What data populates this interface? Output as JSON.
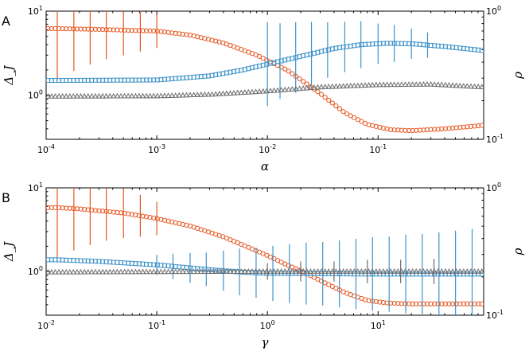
{
  "chart_data": [
    {
      "panel_label": "A",
      "type": "line",
      "title": "",
      "xlabel": "α",
      "ylabel_left": "Δ_J",
      "ylabel_right": "ρ",
      "x_scale": "log",
      "x_range": [
        0.0001,
        0.9
      ],
      "x_ticks": [
        {
          "base": "10",
          "exp": "-4",
          "value": 0.0001
        },
        {
          "base": "10",
          "exp": "-3",
          "value": 0.001
        },
        {
          "base": "10",
          "exp": "-2",
          "value": 0.01
        },
        {
          "base": "10",
          "exp": "-1",
          "value": 0.1
        }
      ],
      "y_left_scale": "log",
      "y_left_range": [
        0.3,
        10
      ],
      "y_left_ticks": [
        {
          "base": "10",
          "exp": "1",
          "value": 10
        },
        {
          "base": "10",
          "exp": "0",
          "value": 1
        }
      ],
      "y_right_scale": "log",
      "y_right_range": [
        0.1,
        1
      ],
      "y_right_ticks": [
        {
          "base": "10",
          "exp": "0",
          "value": 1
        },
        {
          "base": "10",
          "exp": "-1",
          "value": 0.1
        }
      ],
      "grid": false,
      "series": [
        {
          "axis": "left",
          "marker": "circle",
          "color": "#e8561f",
          "points": [
            [
              0.000126,
              6.2
            ],
            [
              0.000178,
              6.15
            ],
            [
              0.00025,
              6.1
            ],
            [
              0.0004,
              6.0
            ],
            [
              0.001,
              5.8
            ],
            [
              0.002,
              5.2
            ],
            [
              0.004,
              4.2
            ],
            [
              0.008,
              3.0
            ],
            [
              0.015,
              2.0
            ],
            [
              0.03,
              1.05
            ],
            [
              0.05,
              0.62
            ],
            [
              0.08,
              0.45
            ],
            [
              0.13,
              0.39
            ],
            [
              0.2,
              0.38
            ],
            [
              0.4,
              0.4
            ],
            [
              0.9,
              0.44
            ]
          ],
          "errors": [
            [
              0.000126,
              0.6
            ],
            [
              0.000178,
              0.5
            ],
            [
              0.00025,
              0.42
            ],
            [
              0.00035,
              0.35
            ],
            [
              0.0005,
              0.3
            ],
            [
              0.00071,
              0.25
            ],
            [
              0.001,
              0.2
            ]
          ]
        },
        {
          "axis": "left",
          "marker": "square",
          "color": "#3f93c9",
          "points": [
            [
              0.0001,
              1.5
            ],
            [
              0.001,
              1.52
            ],
            [
              0.003,
              1.7
            ],
            [
              0.006,
              2.0
            ],
            [
              0.01,
              2.35
            ],
            [
              0.02,
              2.9
            ],
            [
              0.04,
              3.6
            ],
            [
              0.07,
              4.0
            ],
            [
              0.12,
              4.15
            ],
            [
              0.2,
              4.1
            ],
            [
              0.4,
              3.8
            ],
            [
              0.9,
              3.4
            ]
          ],
          "errors": [
            [
              0.01,
              0.5
            ],
            [
              0.013,
              0.45
            ],
            [
              0.018,
              0.42
            ],
            [
              0.025,
              0.38
            ],
            [
              0.035,
              0.33
            ],
            [
              0.05,
              0.3
            ],
            [
              0.07,
              0.28
            ],
            [
              0.1,
              0.24
            ],
            [
              0.14,
              0.22
            ],
            [
              0.2,
              0.18
            ],
            [
              0.28,
              0.15
            ]
          ]
        },
        {
          "axis": "left",
          "marker": "triangle",
          "color": "#6b6b6b",
          "points": [
            [
              0.0001,
              0.97
            ],
            [
              0.001,
              0.98
            ],
            [
              0.003,
              1.02
            ],
            [
              0.01,
              1.12
            ],
            [
              0.03,
              1.25
            ],
            [
              0.1,
              1.33
            ],
            [
              0.3,
              1.35
            ],
            [
              0.9,
              1.25
            ]
          ],
          "errors": []
        }
      ]
    },
    {
      "panel_label": "B",
      "type": "line",
      "title": "",
      "xlabel": "γ",
      "ylabel_left": "Δ_J",
      "ylabel_right": "ρ",
      "x_scale": "log",
      "x_range": [
        0.01,
        90
      ],
      "x_ticks": [
        {
          "base": "10",
          "exp": "-2",
          "value": 0.01
        },
        {
          "base": "10",
          "exp": "-1",
          "value": 0.1
        },
        {
          "base": "10",
          "exp": "0",
          "value": 1
        },
        {
          "base": "10",
          "exp": "1",
          "value": 10
        }
      ],
      "y_left_scale": "log",
      "y_left_range": [
        0.3,
        10
      ],
      "y_left_ticks": [
        {
          "base": "10",
          "exp": "1",
          "value": 10
        },
        {
          "base": "10",
          "exp": "0",
          "value": 1
        }
      ],
      "y_right_scale": "log",
      "y_right_range": [
        0.1,
        1
      ],
      "y_right_ticks": [
        {
          "base": "10",
          "exp": "0",
          "value": 1
        },
        {
          "base": "10",
          "exp": "-1",
          "value": 0.1
        }
      ],
      "grid": false,
      "series": [
        {
          "axis": "left",
          "marker": "circle",
          "color": "#e8561f",
          "points": [
            [
              0.0126,
              5.8
            ],
            [
              0.02,
              5.6
            ],
            [
              0.05,
              5.0
            ],
            [
              0.1,
              4.3
            ],
            [
              0.2,
              3.5
            ],
            [
              0.4,
              2.6
            ],
            [
              0.7,
              1.9
            ],
            [
              1.0,
              1.55
            ],
            [
              1.5,
              1.2
            ],
            [
              2.0,
              1.02
            ],
            [
              3.0,
              0.78
            ],
            [
              5.0,
              0.56
            ],
            [
              8.0,
              0.45
            ],
            [
              12.0,
              0.42
            ],
            [
              20.0,
              0.41
            ],
            [
              90.0,
              0.41
            ]
          ],
          "errors": [
            [
              0.0126,
              0.6
            ],
            [
              0.0178,
              0.5
            ],
            [
              0.025,
              0.42
            ],
            [
              0.035,
              0.35
            ],
            [
              0.05,
              0.3
            ],
            [
              0.071,
              0.25
            ],
            [
              0.1,
              0.2
            ]
          ]
        },
        {
          "axis": "left",
          "marker": "square",
          "color": "#3f93c9",
          "points": [
            [
              0.0126,
              1.38
            ],
            [
              0.03,
              1.32
            ],
            [
              0.1,
              1.2
            ],
            [
              0.3,
              1.05
            ],
            [
              0.6,
              0.98
            ],
            [
              1.0,
              0.95
            ],
            [
              3.0,
              0.94
            ],
            [
              10.0,
              0.93
            ],
            [
              90.0,
              0.93
            ]
          ],
          "errors": [
            [
              0.1,
              0.12
            ],
            [
              0.14,
              0.15
            ],
            [
              0.2,
              0.18
            ],
            [
              0.28,
              0.2
            ],
            [
              0.4,
              0.24
            ],
            [
              0.56,
              0.28
            ],
            [
              0.79,
              0.3
            ],
            [
              1.12,
              0.33
            ],
            [
              1.58,
              0.35
            ],
            [
              2.24,
              0.37
            ],
            [
              3.16,
              0.38
            ],
            [
              4.47,
              0.4
            ],
            [
              6.31,
              0.42
            ],
            [
              8.91,
              0.44
            ],
            [
              12.6,
              0.45
            ],
            [
              17.8,
              0.47
            ],
            [
              25.1,
              0.48
            ],
            [
              35.5,
              0.5
            ],
            [
              50.1,
              0.52
            ],
            [
              70.8,
              0.54
            ]
          ]
        },
        {
          "axis": "left",
          "marker": "triangle",
          "color": "#6b6b6b",
          "points": [
            [
              0.0126,
              0.98
            ],
            [
              0.1,
              0.99
            ],
            [
              1.0,
              1.0
            ],
            [
              10.0,
              1.0
            ],
            [
              90.0,
              1.0
            ]
          ],
          "errors": [
            [
              1.0,
              0.1
            ],
            [
              2.0,
              0.12
            ],
            [
              4.0,
              0.12
            ],
            [
              8.0,
              0.14
            ],
            [
              16.0,
              0.14
            ],
            [
              32.0,
              0.15
            ]
          ]
        }
      ]
    }
  ]
}
